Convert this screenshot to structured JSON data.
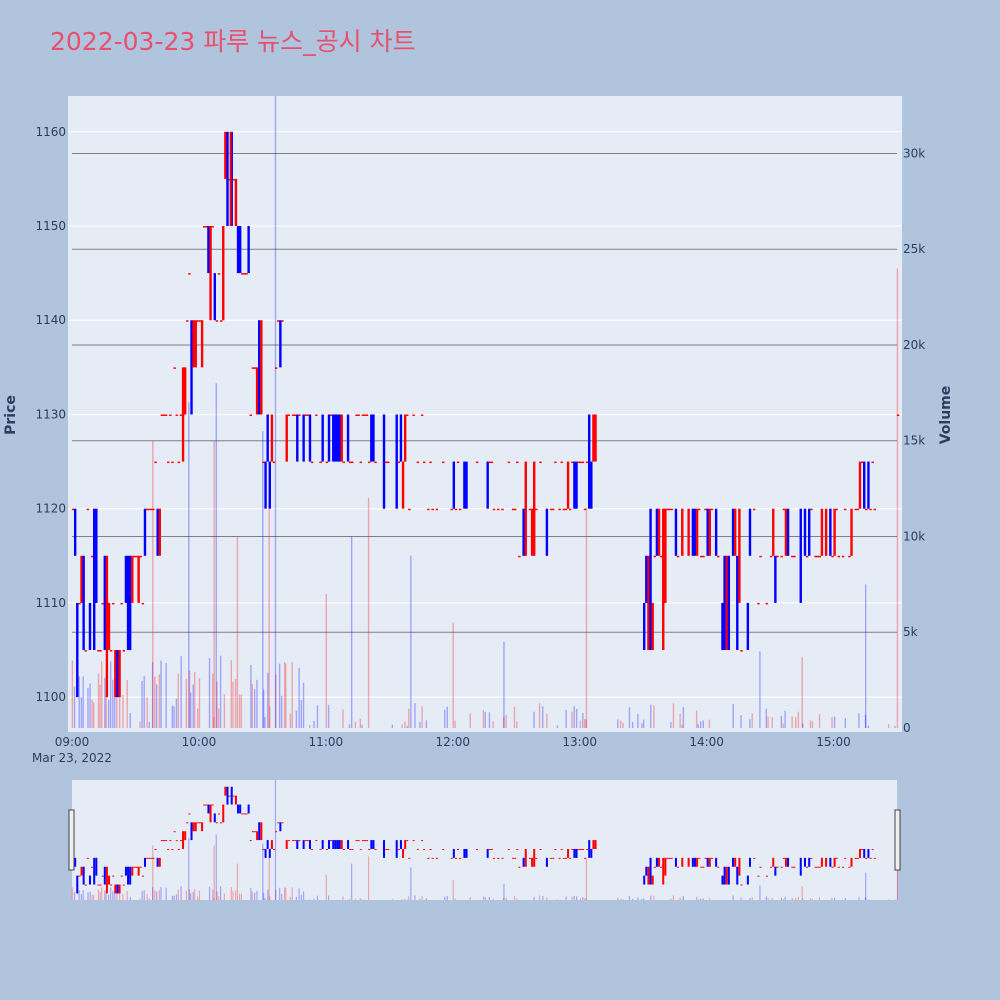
{
  "title": "2022-03-23 파루 뉴스_공시 차트",
  "colors": {
    "background": "#b0c4de",
    "plot_bg": "#e5ecf6",
    "up": "#ff0000",
    "down": "#0000ff",
    "title": "#e8506e",
    "grid": "#ffffff",
    "vol_grid": "#808080"
  },
  "chart_data": {
    "type": "candlestick",
    "x_date_label": "Mar 23, 2022",
    "x_ticks": [
      "09:00",
      "10:00",
      "11:00",
      "12:00",
      "13:00",
      "14:00",
      "15:00"
    ],
    "y_ticks": [
      1100,
      1110,
      1120,
      1130,
      1140,
      1150,
      1160
    ],
    "y2_ticks": [
      "0",
      "5k",
      "10k",
      "15k",
      "20k",
      "25k",
      "30k"
    ],
    "ylabel": "Price",
    "y2label": "Volume",
    "ylim": [
      1096.3,
      1163.8
    ],
    "y2lim": [
      0,
      33000
    ],
    "xlim": [
      "09:00",
      "15:30"
    ],
    "segments": [
      {
        "s": "09:00",
        "e": "09:06",
        "lo": 1100,
        "hi": 1120
      },
      {
        "s": "09:06",
        "e": "09:12",
        "lo": 1105,
        "hi": 1120
      },
      {
        "s": "09:12",
        "e": "09:18",
        "lo": 1100,
        "hi": 1115
      },
      {
        "s": "09:18",
        "e": "09:24",
        "lo": 1100,
        "hi": 1110
      },
      {
        "s": "09:24",
        "e": "09:31",
        "lo": 1105,
        "hi": 1115
      },
      {
        "s": "09:31",
        "e": "09:36",
        "lo": 1110,
        "hi": 1120
      },
      {
        "s": "09:36",
        "e": "09:42",
        "lo": 1115,
        "hi": 1125
      },
      {
        "s": "09:42",
        "e": "09:48",
        "lo": 1125,
        "hi": 1130
      },
      {
        "s": "09:48",
        "e": "09:54",
        "lo": 1125,
        "hi": 1135
      },
      {
        "s": "09:54",
        "e": "09:58",
        "lo": 1130,
        "hi": 1145
      },
      {
        "s": "09:58",
        "e": "10:02",
        "lo": 1135,
        "hi": 1140
      },
      {
        "s": "10:02",
        "e": "10:07",
        "lo": 1140,
        "hi": 1155
      },
      {
        "s": "10:07",
        "e": "10:12",
        "lo": 1140,
        "hi": 1150
      },
      {
        "s": "10:12",
        "e": "10:18",
        "lo": 1150,
        "hi": 1160
      },
      {
        "s": "10:18",
        "e": "10:24",
        "lo": 1140,
        "hi": 1150
      },
      {
        "s": "10:24",
        "e": "10:30",
        "lo": 1130,
        "hi": 1140
      },
      {
        "s": "10:30",
        "e": "10:36",
        "lo": 1120,
        "hi": 1130
      },
      {
        "s": "10:36",
        "e": "10:40",
        "lo": 1130,
        "hi": 1140
      },
      {
        "s": "10:40",
        "e": "11:00",
        "lo": 1125,
        "hi": 1130
      },
      {
        "s": "11:00",
        "e": "11:24",
        "lo": 1125,
        "hi": 1130
      },
      {
        "s": "11:24",
        "e": "11:50",
        "lo": 1120,
        "hi": 1130
      },
      {
        "s": "11:50",
        "e": "12:30",
        "lo": 1120,
        "hi": 1125
      },
      {
        "s": "12:30",
        "e": "12:45",
        "lo": 1115,
        "hi": 1125
      },
      {
        "s": "12:45",
        "e": "13:00",
        "lo": 1120,
        "hi": 1125
      },
      {
        "s": "13:00",
        "e": "13:08",
        "lo": 1120,
        "hi": 1130
      },
      {
        "s": "13:30",
        "e": "13:42",
        "lo": 1105,
        "hi": 1120
      },
      {
        "s": "13:42",
        "e": "14:05",
        "lo": 1115,
        "hi": 1120
      },
      {
        "s": "14:05",
        "e": "14:30",
        "lo": 1105,
        "hi": 1120
      },
      {
        "s": "14:30",
        "e": "14:48",
        "lo": 1110,
        "hi": 1120
      },
      {
        "s": "14:48",
        "e": "15:10",
        "lo": 1115,
        "hi": 1120
      },
      {
        "s": "15:10",
        "e": "15:20",
        "lo": 1115,
        "hi": 1125
      },
      {
        "s": "15:30",
        "e": "15:30",
        "lo": 1130,
        "hi": 1130
      }
    ],
    "volume_peaks": [
      {
        "t": "09:38",
        "v": 15000
      },
      {
        "t": "09:55",
        "v": 17000
      },
      {
        "t": "10:07",
        "v": 15000
      },
      {
        "t": "10:08",
        "v": 18000
      },
      {
        "t": "10:18",
        "v": 10000
      },
      {
        "t": "10:30",
        "v": 15500
      },
      {
        "t": "10:33",
        "v": 12000
      },
      {
        "t": "10:36",
        "v": 33000
      },
      {
        "t": "11:00",
        "v": 7000
      },
      {
        "t": "11:12",
        "v": 10000
      },
      {
        "t": "11:20",
        "v": 12000
      },
      {
        "t": "11:40",
        "v": 9000
      },
      {
        "t": "12:00",
        "v": 5500
      },
      {
        "t": "12:24",
        "v": 4500
      },
      {
        "t": "13:03",
        "v": 11500
      },
      {
        "t": "14:25",
        "v": 4000
      },
      {
        "t": "14:45",
        "v": 3700
      },
      {
        "t": "15:15",
        "v": 7500
      },
      {
        "t": "15:30",
        "v": 24000
      }
    ]
  }
}
